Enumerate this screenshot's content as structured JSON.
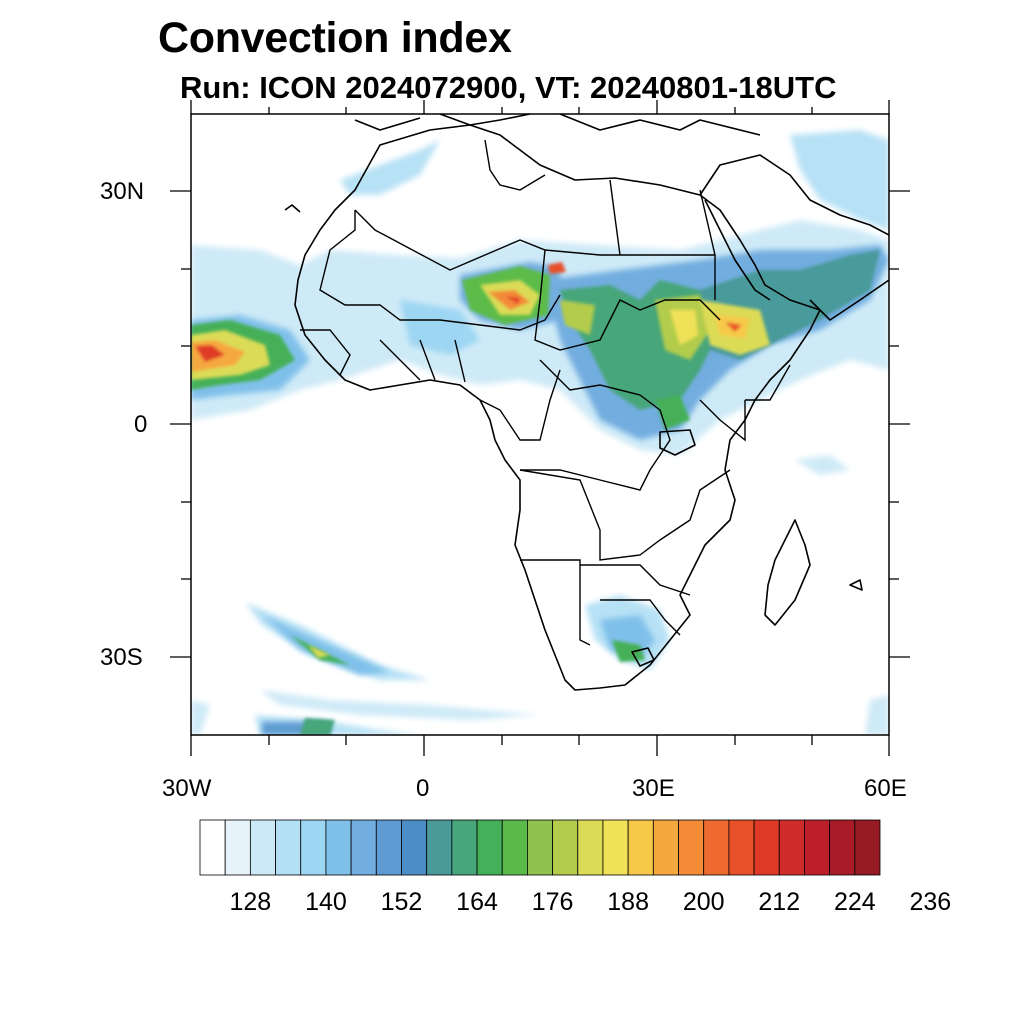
{
  "title": "Convection index",
  "subtitle": "Run: ICON 2024072900,  VT: 20240801-18UTC",
  "axes": {
    "lon_labels": [
      "30W",
      "0",
      "30E",
      "60E"
    ],
    "lat_labels": [
      "30N",
      "0",
      "30S"
    ],
    "lon_range": [
      -30,
      60
    ],
    "lat_range": [
      -40,
      40
    ]
  },
  "colorbar": {
    "labels": [
      "128",
      "140",
      "152",
      "164",
      "176",
      "188",
      "200",
      "212",
      "224",
      "236"
    ],
    "colors": [
      "#ffffff",
      "#e6f3fb",
      "#cce9f7",
      "#b4e0f5",
      "#9dd6f3",
      "#7fc0ea",
      "#72addf",
      "#5e9bd2",
      "#4c8dc8",
      "#4a9a9a",
      "#47a67a",
      "#44b059",
      "#5bbb4a",
      "#8fc24e",
      "#b3cc4c",
      "#dbdb56",
      "#f0e258",
      "#f7c94a",
      "#f6a83f",
      "#f38b37",
      "#ef6a2f",
      "#e8502a",
      "#df3a28",
      "#d22b2b",
      "#bd1f2b",
      "#a91b27",
      "#961a22"
    ]
  }
}
